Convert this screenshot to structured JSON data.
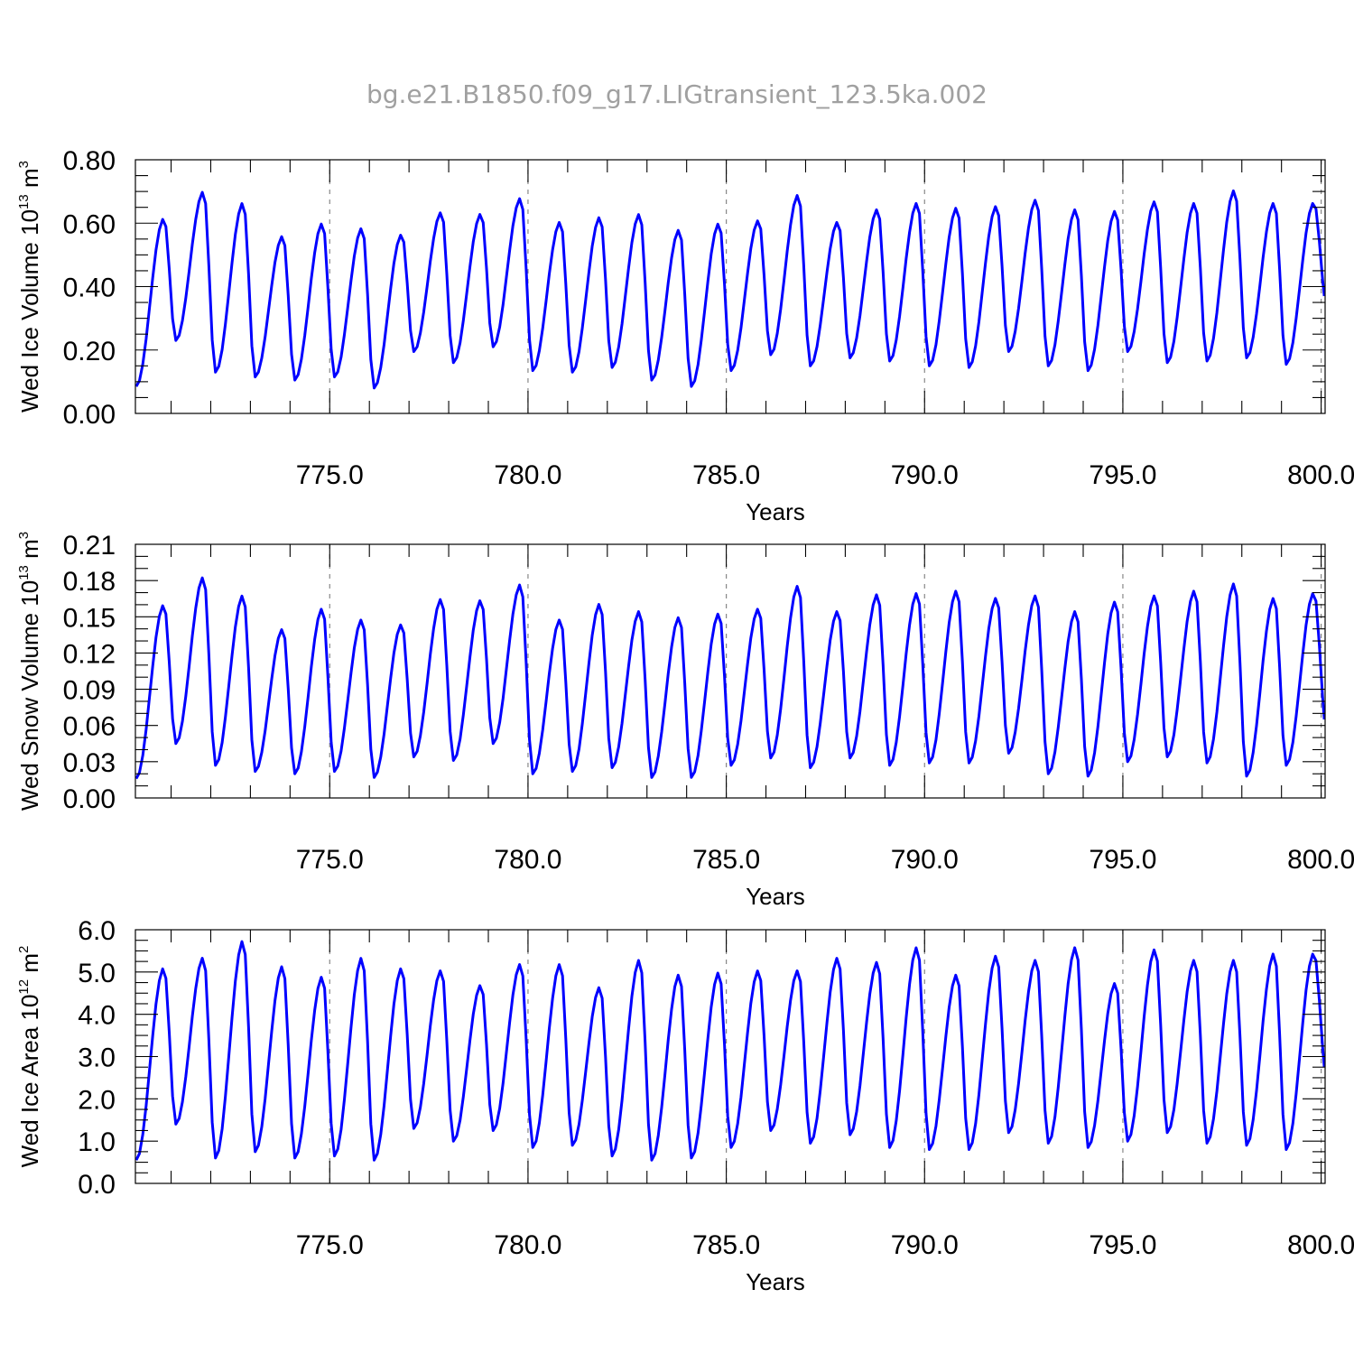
{
  "title": "bg.e21.B1850.f09_g17.LIGtransient_123.5ka.002",
  "chart_data": [
    {
      "type": "line",
      "ylabel": {
        "main": "Wed Ice Volume 10",
        "sup1": "13",
        "mid": " m",
        "sup2": "3"
      },
      "xlabel": "Years",
      "xlim": [
        770.1,
        800.1
      ],
      "ylim": [
        0,
        0.8
      ],
      "yticks": [
        0,
        0.2,
        0.4,
        0.6,
        0.8
      ],
      "yticklabels": [
        "0.00",
        "0.20",
        "0.40",
        "0.60",
        "0.80"
      ],
      "xticks": [
        775,
        780,
        785,
        790,
        795,
        800
      ],
      "xticklabels": [
        "775.0",
        "780.0",
        "785.0",
        "790.0",
        "795.0",
        "800.0"
      ],
      "grid_x": true,
      "color": "#0000ff",
      "annual_minima": [
        0.085,
        0.23,
        0.13,
        0.115,
        0.105,
        0.115,
        0.08,
        0.195,
        0.16,
        0.21,
        0.135,
        0.13,
        0.145,
        0.105,
        0.085,
        0.135,
        0.185,
        0.15,
        0.175,
        0.165,
        0.15,
        0.145,
        0.195,
        0.15,
        0.135,
        0.195,
        0.16,
        0.165,
        0.175,
        0.155,
        0.37
      ],
      "annual_maxima": [
        0.615,
        0.7,
        0.665,
        0.56,
        0.6,
        0.585,
        0.565,
        0.635,
        0.63,
        0.68,
        0.605,
        0.62,
        0.63,
        0.58,
        0.6,
        0.61,
        0.69,
        0.605,
        0.645,
        0.665,
        0.65,
        0.655,
        0.675,
        0.645,
        0.64,
        0.67,
        0.665,
        0.705,
        0.665,
        0.665
      ]
    },
    {
      "type": "line",
      "ylabel": {
        "main": "Wed Snow Volume 10",
        "sup1": "13",
        "mid": " m",
        "sup2": "3"
      },
      "xlabel": "Years",
      "xlim": [
        770.1,
        800.1
      ],
      "ylim": [
        0,
        0.21
      ],
      "yticks": [
        0,
        0.03,
        0.06,
        0.09,
        0.12,
        0.15,
        0.18,
        0.21
      ],
      "yticklabels": [
        "0.00",
        "0.03",
        "0.06",
        "0.09",
        "0.12",
        "0.15",
        "0.18",
        "0.21"
      ],
      "xticks": [
        775,
        780,
        785,
        790,
        795,
        800
      ],
      "xticklabels": [
        "775.0",
        "780.0",
        "785.0",
        "790.0",
        "795.0",
        "800.0"
      ],
      "grid_x": true,
      "color": "#0000ff",
      "annual_minima": [
        0.016,
        0.045,
        0.027,
        0.022,
        0.02,
        0.022,
        0.017,
        0.034,
        0.031,
        0.045,
        0.02,
        0.022,
        0.025,
        0.017,
        0.017,
        0.027,
        0.033,
        0.025,
        0.033,
        0.027,
        0.029,
        0.029,
        0.037,
        0.02,
        0.018,
        0.03,
        0.034,
        0.029,
        0.018,
        0.027,
        0.065
      ],
      "annual_maxima": [
        0.16,
        0.183,
        0.168,
        0.14,
        0.157,
        0.148,
        0.144,
        0.165,
        0.164,
        0.177,
        0.148,
        0.161,
        0.155,
        0.15,
        0.153,
        0.157,
        0.176,
        0.155,
        0.169,
        0.17,
        0.172,
        0.166,
        0.168,
        0.155,
        0.163,
        0.168,
        0.172,
        0.178,
        0.166,
        0.17
      ]
    },
    {
      "type": "line",
      "ylabel": {
        "main": "Wed Ice Area 10",
        "sup1": "12",
        "mid": " m",
        "sup2": "2"
      },
      "xlabel": "Years",
      "xlim": [
        770.1,
        800.1
      ],
      "ylim": [
        0,
        6.0
      ],
      "yticks": [
        0,
        1,
        2,
        3,
        4,
        5,
        6
      ],
      "yticklabels": [
        "0.0",
        "1.0",
        "2.0",
        "3.0",
        "4.0",
        "5.0",
        "6.0"
      ],
      "xticks": [
        775,
        780,
        785,
        790,
        795,
        800
      ],
      "xticklabels": [
        "775.0",
        "780.0",
        "785.0",
        "790.0",
        "795.0",
        "800.0"
      ],
      "grid_x": true,
      "color": "#0000ff",
      "annual_minima": [
        0.55,
        1.4,
        0.6,
        0.75,
        0.6,
        0.65,
        0.55,
        1.3,
        1.0,
        1.25,
        0.85,
        0.9,
        0.65,
        0.55,
        0.6,
        0.85,
        1.25,
        0.95,
        1.15,
        0.85,
        0.8,
        0.8,
        1.2,
        0.95,
        0.85,
        1.0,
        1.2,
        0.95,
        0.9,
        0.8,
        2.75
      ],
      "annual_maxima": [
        5.1,
        5.35,
        5.75,
        5.15,
        4.9,
        5.35,
        5.1,
        5.05,
        4.7,
        5.2,
        5.2,
        4.65,
        5.3,
        4.95,
        5.0,
        5.05,
        5.05,
        5.35,
        5.25,
        5.6,
        4.95,
        5.4,
        5.3,
        5.6,
        4.75,
        5.55,
        5.3,
        5.3,
        5.45,
        5.45
      ]
    }
  ]
}
